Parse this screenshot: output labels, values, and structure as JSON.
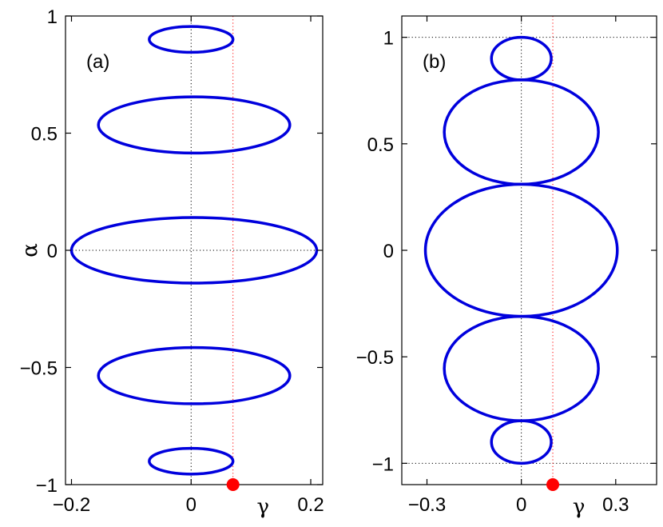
{
  "chart_data": [
    {
      "type": "line",
      "panel_label": "(a)",
      "xlabel": "γ",
      "ylabel": "α",
      "xlim": [
        -0.21,
        0.22
      ],
      "ylim": [
        -1,
        1
      ],
      "xticks": [
        -0.2,
        0,
        0.2
      ],
      "xtick_labels": [
        "−0.2",
        "0",
        "0.2"
      ],
      "yticks": [
        -1,
        -0.5,
        0,
        0.5,
        1
      ],
      "ytick_labels": [
        "−1",
        "−0.5",
        "0",
        "0.5",
        "1"
      ],
      "grid": false,
      "reference_lines": {
        "x": [
          0
        ],
        "y": [
          0
        ],
        "red_x": 0.07
      },
      "marker": {
        "x": 0.07,
        "y": -1,
        "color": "#ff0000"
      },
      "curve_color": "#0000dd",
      "series": [
        {
          "shape": "ellipse",
          "cx": 0,
          "cy": 0.9,
          "rx": 0.07,
          "ry": 0.055
        },
        {
          "shape": "ellipse",
          "cx": 0.005,
          "cy": 0.535,
          "rx": 0.16,
          "ry": 0.12
        },
        {
          "shape": "ellipse",
          "cx": 0.005,
          "cy": 0,
          "rx": 0.205,
          "ry": 0.14
        },
        {
          "shape": "ellipse",
          "cx": 0.005,
          "cy": -0.535,
          "rx": 0.16,
          "ry": 0.12
        },
        {
          "shape": "ellipse",
          "cx": 0,
          "cy": -0.9,
          "rx": 0.07,
          "ry": 0.055
        }
      ]
    },
    {
      "type": "line",
      "panel_label": "(b)",
      "xlabel": "γ",
      "ylabel": "",
      "xlim": [
        -0.38,
        0.43
      ],
      "ylim": [
        -1.1,
        1.1
      ],
      "xticks": [
        -0.3,
        0,
        0.3
      ],
      "xtick_labels": [
        "−0.3",
        "0",
        "0.3"
      ],
      "yticks": [
        -1,
        -0.5,
        0,
        0.5,
        1
      ],
      "ytick_labels": [
        "−1",
        "−0.5",
        "0",
        "0.5",
        "1"
      ],
      "grid": false,
      "reference_lines": {
        "x": [
          0
        ],
        "y": [
          -1,
          1
        ],
        "red_x": 0.1
      },
      "marker": {
        "x": 0.1,
        "y": -1.1,
        "color": "#ff0000"
      },
      "curve_color": "#0000dd",
      "series": [
        {
          "shape": "ellipse",
          "cx": 0,
          "cy": 0.9,
          "rx": 0.095,
          "ry": 0.1
        },
        {
          "shape": "ellipse",
          "cx": 0,
          "cy": 0.555,
          "rx": 0.245,
          "ry": 0.245
        },
        {
          "shape": "ellipse",
          "cx": 0,
          "cy": 0,
          "rx": 0.305,
          "ry": 0.31
        },
        {
          "shape": "ellipse",
          "cx": 0,
          "cy": -0.555,
          "rx": 0.245,
          "ry": 0.245
        },
        {
          "shape": "ellipse",
          "cx": 0,
          "cy": -0.9,
          "rx": 0.095,
          "ry": 0.1
        }
      ]
    }
  ]
}
